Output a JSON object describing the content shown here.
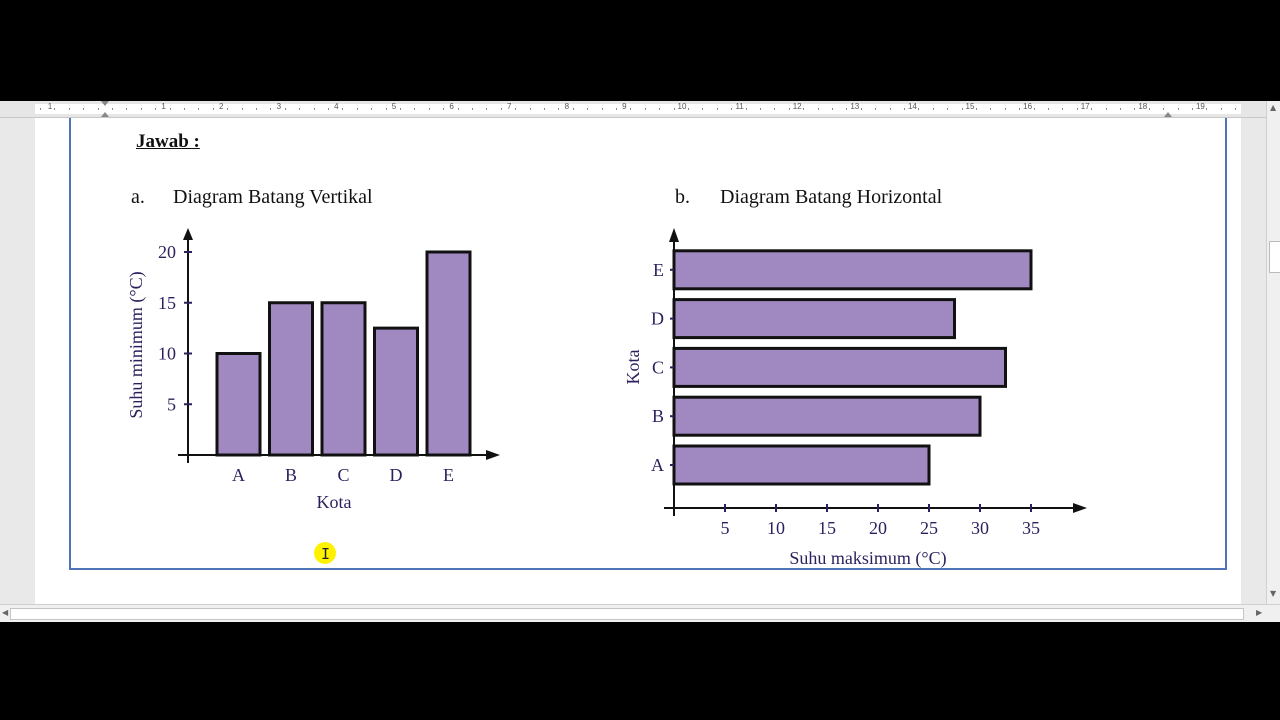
{
  "ruler": {
    "labels": [
      "1",
      "1",
      "2",
      "3",
      "4",
      "5",
      "6",
      "7",
      "8",
      "9",
      "10",
      "11",
      "12",
      "13",
      "14",
      "15",
      "16",
      "17",
      "18",
      "19"
    ]
  },
  "document": {
    "heading": "Jawab :",
    "part_a": {
      "letter": "a.",
      "title": "Diagram Batang Vertikal"
    },
    "part_b": {
      "letter": "b.",
      "title": "Diagram Batang Horizontal"
    }
  },
  "colors": {
    "bar_fill": "#a088c0",
    "axis": "#111111",
    "tick_text": "#2d1f5e",
    "frame": "#4f74b8"
  },
  "chart_data": [
    {
      "type": "bar",
      "orientation": "vertical",
      "categories": [
        "A",
        "B",
        "C",
        "D",
        "E"
      ],
      "values": [
        10,
        15,
        15,
        12.5,
        20
      ],
      "xlabel": "Kota",
      "ylabel": "Suhu minimum (°C)",
      "yticks": [
        5,
        10,
        15,
        20
      ],
      "ylim": [
        0,
        20
      ]
    },
    {
      "type": "bar",
      "orientation": "horizontal",
      "categories": [
        "A",
        "B",
        "C",
        "D",
        "E"
      ],
      "values": [
        25,
        30,
        32.5,
        27.5,
        35
      ],
      "xlabel": "Suhu maksimum (°C)",
      "ylabel": "Kota",
      "xticks": [
        5,
        10,
        15,
        20,
        25,
        30,
        35
      ],
      "xlim": [
        0,
        35
      ]
    }
  ]
}
